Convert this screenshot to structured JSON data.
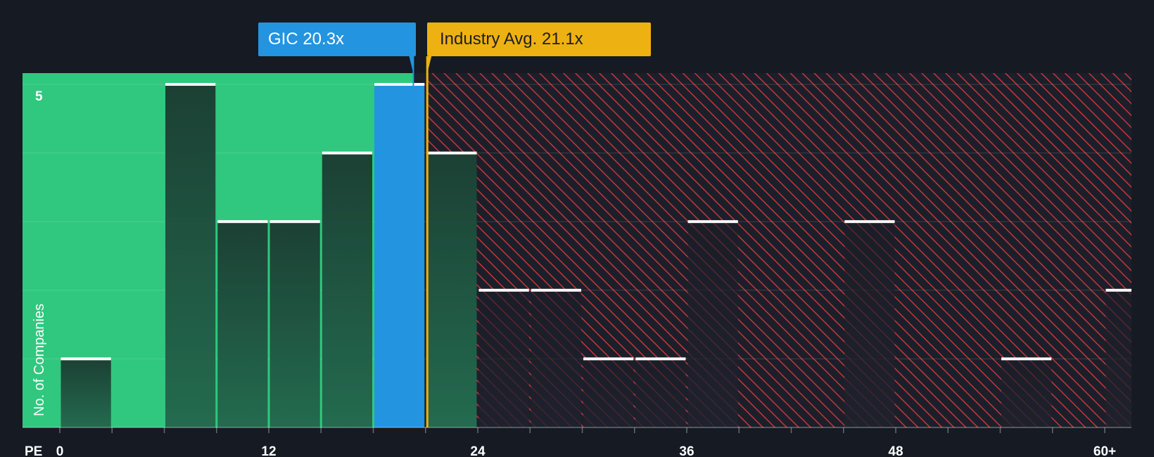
{
  "chart_data": {
    "type": "bar",
    "x_axis_label": "PE",
    "y_axis_label": "No. of Companies",
    "x_ticks": [
      "0",
      "12",
      "24",
      "36",
      "48",
      "60+"
    ],
    "x_tick_values": [
      0,
      12,
      24,
      36,
      48,
      60
    ],
    "y_ticks": [
      5
    ],
    "ylim": [
      0,
      5
    ],
    "xlim": [
      0,
      61.5
    ],
    "bin_width": 3,
    "bins": [
      {
        "start": 0,
        "count": 1
      },
      {
        "start": 3,
        "count": 0
      },
      {
        "start": 6,
        "count": 5
      },
      {
        "start": 9,
        "count": 3
      },
      {
        "start": 12,
        "count": 3
      },
      {
        "start": 15,
        "count": 4
      },
      {
        "start": 18,
        "count": 5
      },
      {
        "start": 21,
        "count": 4
      },
      {
        "start": 24,
        "count": 2
      },
      {
        "start": 27,
        "count": 2
      },
      {
        "start": 30,
        "count": 1
      },
      {
        "start": 33,
        "count": 1
      },
      {
        "start": 36,
        "count": 3
      },
      {
        "start": 39,
        "count": 0
      },
      {
        "start": 42,
        "count": 0
      },
      {
        "start": 45,
        "count": 3
      },
      {
        "start": 48,
        "count": 0
      },
      {
        "start": 51,
        "count": 0
      },
      {
        "start": 54,
        "count": 1
      },
      {
        "start": 57,
        "count": 0
      },
      {
        "start": 60,
        "count": 2
      }
    ],
    "company": {
      "label": "GIC 20.3x",
      "value": 20.3,
      "color": "#2394e0"
    },
    "industry_avg": {
      "label": "Industry Avg. 21.1x",
      "value": 21.1,
      "color": "#eeb112"
    },
    "colors": {
      "background": "#151a23",
      "below_region": "#2fc87e",
      "above_region_hatch": "#c4363d",
      "bar_fill_below": "#1f4a3c",
      "bar_fill_above": "#1d212c",
      "bar_cap": "#ffffff"
    }
  }
}
